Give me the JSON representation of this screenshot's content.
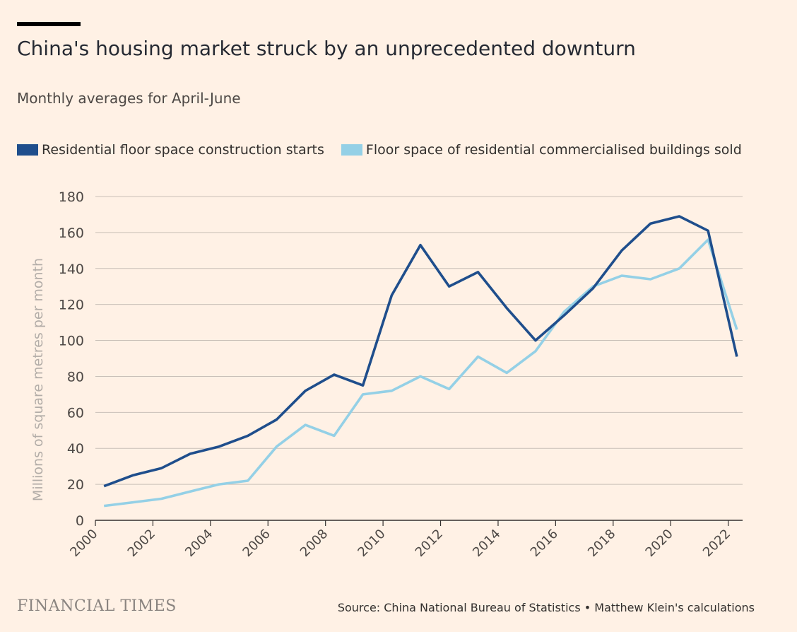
{
  "header": {
    "title": "China's housing market struck by an unprecedented downturn",
    "subtitle": "Monthly averages for April-June"
  },
  "footer": {
    "brand": "FINANCIAL TIMES",
    "source": "Source: China National Bureau of Statistics • Matthew Klein's calculations"
  },
  "chart_data": {
    "type": "line",
    "title": "China's housing market struck by an unprecedented downturn",
    "subtitle": "Monthly averages for April-June",
    "ylabel": "Millions of square metres per month",
    "xlabel": "",
    "ylim": [
      0,
      180
    ],
    "xlim": [
      2000,
      2022.5
    ],
    "yticks": [
      0,
      20,
      40,
      60,
      80,
      100,
      120,
      140,
      160,
      180
    ],
    "xticks": [
      "2000",
      "2002",
      "2004",
      "2006",
      "2008",
      "2010",
      "2012",
      "2014",
      "2016",
      "2018",
      "2020",
      "2022"
    ],
    "grid": true,
    "legend_position": "top-left",
    "x": [
      2000.3,
      2001.3,
      2002.3,
      2003.3,
      2004.3,
      2005.3,
      2006.3,
      2007.3,
      2008.3,
      2009.3,
      2010.3,
      2011.3,
      2012.3,
      2013.3,
      2014.3,
      2015.3,
      2016.3,
      2017.3,
      2018.3,
      2019.3,
      2020.3,
      2021.3,
      2022.3
    ],
    "series": [
      {
        "name": "Residential floor space construction starts",
        "color": "#1f4e8c",
        "values": [
          19,
          25,
          29,
          37,
          41,
          47,
          56,
          72,
          81,
          75,
          125,
          153,
          130,
          138,
          118,
          100,
          114,
          129,
          150,
          165,
          169,
          161,
          91
        ]
      },
      {
        "name": "Floor space of residential commercialised buildings sold",
        "color": "#94d0e6",
        "values": [
          8,
          10,
          12,
          16,
          20,
          22,
          41,
          53,
          47,
          70,
          72,
          80,
          73,
          91,
          82,
          94,
          116,
          130,
          136,
          134,
          140,
          156,
          106
        ]
      }
    ]
  }
}
